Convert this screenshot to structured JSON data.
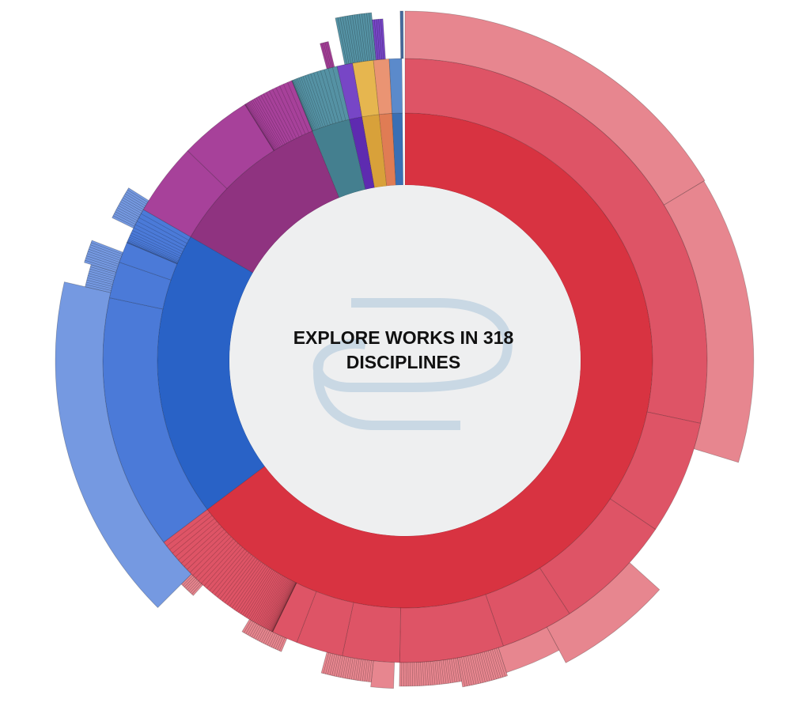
{
  "center": {
    "title": "EXPLORE WORKS IN 318 DISCIPLINES",
    "logo": "bepress-loop-logo"
  },
  "colors": {
    "red": [
      "#d83341",
      "#de5466",
      "#e7868f"
    ],
    "blue": [
      "#2962c6",
      "#4b7ad8",
      "#7599e1"
    ],
    "purple": [
      "#8f3380",
      "#a7419a"
    ],
    "teal": [
      "#447f8f",
      "#5592a4"
    ],
    "violet": [
      "#5e2bb0",
      "#7746c6"
    ],
    "gold": [
      "#d8a13a",
      "#e6b64f"
    ],
    "orange": [
      "#e07c54",
      "#ea9473"
    ],
    "steel": [
      "#3a6fb4",
      "#5b8acb"
    ],
    "center": "#eeeff0",
    "logo": "#c9d8e4"
  },
  "chart_data": {
    "type": "sunburst",
    "title": "EXPLORE WORKS IN 318 DISCIPLINES",
    "rings": 3,
    "note": "angular shares estimated in degrees, clockwise from 12 o'clock",
    "inner": [
      {
        "group": "red",
        "start": 0,
        "end": 233
      },
      {
        "group": "blue",
        "start": 233,
        "end": 300
      },
      {
        "group": "purple",
        "start": 300,
        "end": 338
      },
      {
        "group": "teal",
        "start": 338,
        "end": 347
      },
      {
        "group": "violet",
        "start": 347,
        "end": 350
      },
      {
        "group": "gold",
        "start": 350,
        "end": 354
      },
      {
        "group": "orange",
        "start": 354,
        "end": 357
      },
      {
        "group": "steel",
        "start": 357,
        "end": 359.4
      }
    ],
    "middle": [
      {
        "group": "red",
        "start": 0,
        "end": 102
      },
      {
        "group": "red",
        "start": 102,
        "end": 124
      },
      {
        "group": "red",
        "start": 124,
        "end": 147
      },
      {
        "group": "red",
        "start": 147,
        "end": 161
      },
      {
        "group": "red",
        "start": 161,
        "end": 181
      },
      {
        "group": "red",
        "start": 181,
        "end": 192
      },
      {
        "group": "red",
        "start": 192,
        "end": 201
      },
      {
        "group": "red",
        "start": 201,
        "end": 206
      },
      {
        "group": "red",
        "start": 206,
        "end": 233,
        "fine": true
      },
      {
        "group": "blue",
        "start": 233,
        "end": 282
      },
      {
        "group": "blue",
        "start": 282,
        "end": 289
      },
      {
        "group": "blue",
        "start": 289,
        "end": 293
      },
      {
        "group": "blue",
        "start": 293,
        "end": 300,
        "fine": true
      },
      {
        "group": "purple",
        "start": 300,
        "end": 314
      },
      {
        "group": "purple",
        "start": 314,
        "end": 328
      },
      {
        "group": "purple",
        "start": 328,
        "end": 338,
        "fine": true
      },
      {
        "group": "teal",
        "start": 338,
        "end": 347,
        "fine": true
      },
      {
        "group": "violet",
        "start": 347,
        "end": 350
      },
      {
        "group": "gold",
        "start": 350,
        "end": 354
      },
      {
        "group": "orange",
        "start": 354,
        "end": 357
      },
      {
        "group": "steel",
        "start": 357,
        "end": 359.4
      }
    ],
    "outer": [
      {
        "group": "red",
        "start": 0,
        "end": 59,
        "depth": 1.0
      },
      {
        "group": "red",
        "start": 59,
        "end": 107,
        "depth": 0.98
      },
      {
        "group": "red",
        "start": 132,
        "end": 152,
        "depth": 0.85
      },
      {
        "group": "red",
        "start": 152,
        "end": 162,
        "depth": 0.55
      },
      {
        "group": "red",
        "start": 162,
        "end": 170,
        "depth": 0.62,
        "fine": true
      },
      {
        "group": "red",
        "start": 170,
        "end": 181,
        "depth": 0.5,
        "fine": true
      },
      {
        "group": "red",
        "start": 182,
        "end": 186,
        "depth": 0.55
      },
      {
        "group": "red",
        "start": 186,
        "end": 195,
        "depth": 0.45,
        "fine": true
      },
      {
        "group": "red",
        "start": 203,
        "end": 211,
        "depth": 0.3,
        "fine": true
      },
      {
        "group": "red",
        "start": 222,
        "end": 225,
        "depth": 0.3,
        "fine": true
      },
      {
        "group": "blue",
        "start": 225,
        "end": 283,
        "depth": 1.0
      },
      {
        "group": "blue",
        "start": 283,
        "end": 287,
        "depth": 0.55,
        "fine": true
      },
      {
        "group": "blue",
        "start": 287,
        "end": 291,
        "depth": 0.7,
        "fine": true
      },
      {
        "group": "blue",
        "start": 296,
        "end": 302,
        "depth": 0.5,
        "fine": true
      },
      {
        "group": "purple",
        "start": 345,
        "end": 346.5,
        "depth": 0.55,
        "fine": true
      },
      {
        "group": "teal",
        "start": 348.5,
        "end": 354.5,
        "depth": 1.0,
        "fine": true
      },
      {
        "group": "violet",
        "start": 354.5,
        "end": 356.3,
        "depth": 0.85,
        "fine": true
      },
      {
        "group": "steel",
        "start": 359.2,
        "end": 359.7,
        "depth": 1.0,
        "fine": true
      }
    ]
  }
}
